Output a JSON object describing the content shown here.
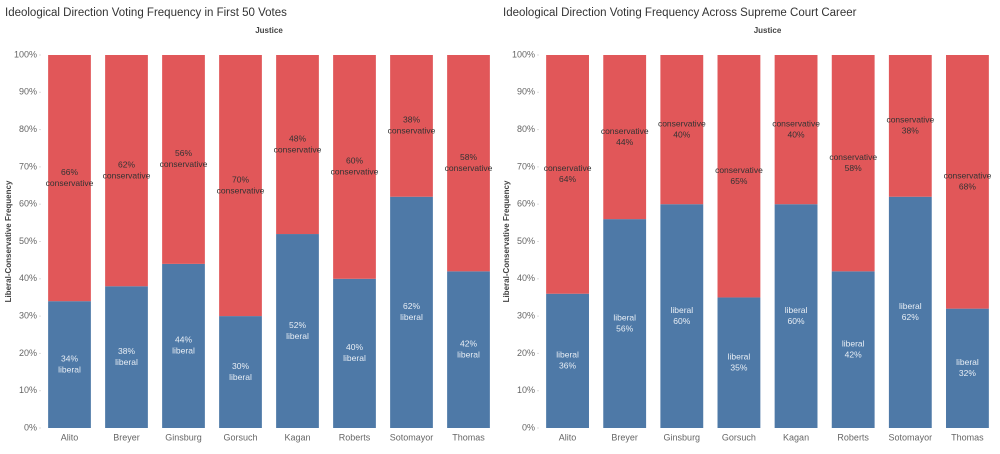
{
  "chart_data": [
    {
      "type": "stacked-bar",
      "title": "Ideological Direction Voting Frequency in First 50 Votes",
      "x_label": "Justice",
      "y_label": "Liberal-Conservative Frequency",
      "categories": [
        "Alito",
        "Breyer",
        "Ginsburg",
        "Gorsuch",
        "Kagan",
        "Roberts",
        "Sotomayor",
        "Thomas"
      ],
      "series": [
        {
          "name": "liberal",
          "color": "#4e79a7",
          "values": [
            34,
            38,
            44,
            30,
            52,
            40,
            62,
            42
          ],
          "value_labels": [
            "34%",
            "38%",
            "44%",
            "30%",
            "52%",
            "40%",
            "62%",
            "42%"
          ]
        },
        {
          "name": "conservative",
          "color": "#e15759",
          "values": [
            66,
            62,
            56,
            70,
            48,
            60,
            38,
            58
          ],
          "value_labels": [
            "66%",
            "62%",
            "56%",
            "70%",
            "48%",
            "60%",
            "38%",
            "58%"
          ]
        }
      ],
      "ylim": [
        0,
        100
      ],
      "yticks": [
        {
          "value": 0,
          "label": "0%"
        },
        {
          "value": 10,
          "label": "10%"
        },
        {
          "value": 20,
          "label": "20%"
        },
        {
          "value": 30,
          "label": "30%"
        },
        {
          "value": 40,
          "label": "40%"
        },
        {
          "value": 50,
          "label": "50%"
        },
        {
          "value": 60,
          "label": "60%"
        },
        {
          "value": 70,
          "label": "70%"
        },
        {
          "value": 80,
          "label": "80%"
        },
        {
          "value": 90,
          "label": "90%"
        },
        {
          "value": 100,
          "label": "100%"
        }
      ]
    },
    {
      "type": "stacked-bar",
      "title": "Ideological Direction Voting Frequency Across Supreme Court Career",
      "x_label": "Justice",
      "y_label": "Liberal-Conservative Frequency",
      "categories": [
        "Alito",
        "Breyer",
        "Ginsburg",
        "Gorsuch",
        "Kagan",
        "Roberts",
        "Sotomayor",
        "Thomas"
      ],
      "series": [
        {
          "name": "liberal",
          "color": "#4e79a7",
          "values": [
            36,
            56,
            60,
            35,
            60,
            42,
            62,
            32
          ],
          "value_labels": [
            "36%",
            "56%",
            "60%",
            "35%",
            "60%",
            "42%",
            "62%",
            "32%"
          ]
        },
        {
          "name": "conservative",
          "color": "#e15759",
          "values": [
            64,
            44,
            40,
            65,
            40,
            58,
            38,
            68
          ],
          "value_labels": [
            "64%",
            "44%",
            "40%",
            "65%",
            "40%",
            "58%",
            "38%",
            "68%"
          ]
        }
      ],
      "ylim": [
        0,
        100
      ],
      "yticks": [
        {
          "value": 0,
          "label": "0%"
        },
        {
          "value": 10,
          "label": "10%"
        },
        {
          "value": 20,
          "label": "20%"
        },
        {
          "value": 30,
          "label": "30%"
        },
        {
          "value": 40,
          "label": "40%"
        },
        {
          "value": 50,
          "label": "50%"
        },
        {
          "value": 60,
          "label": "60%"
        },
        {
          "value": 70,
          "label": "70%"
        },
        {
          "value": 80,
          "label": "80%"
        },
        {
          "value": 90,
          "label": "90%"
        },
        {
          "value": 100,
          "label": "100%"
        }
      ]
    }
  ]
}
